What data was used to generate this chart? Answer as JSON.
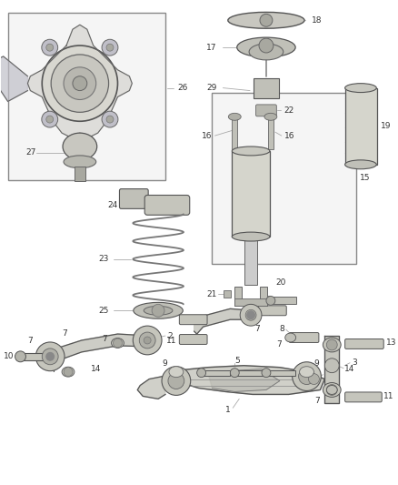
{
  "bg_color": "#ffffff",
  "line_color": "#555555",
  "text_color": "#333333",
  "fig_width": 4.38,
  "fig_height": 5.33,
  "dpi": 100
}
